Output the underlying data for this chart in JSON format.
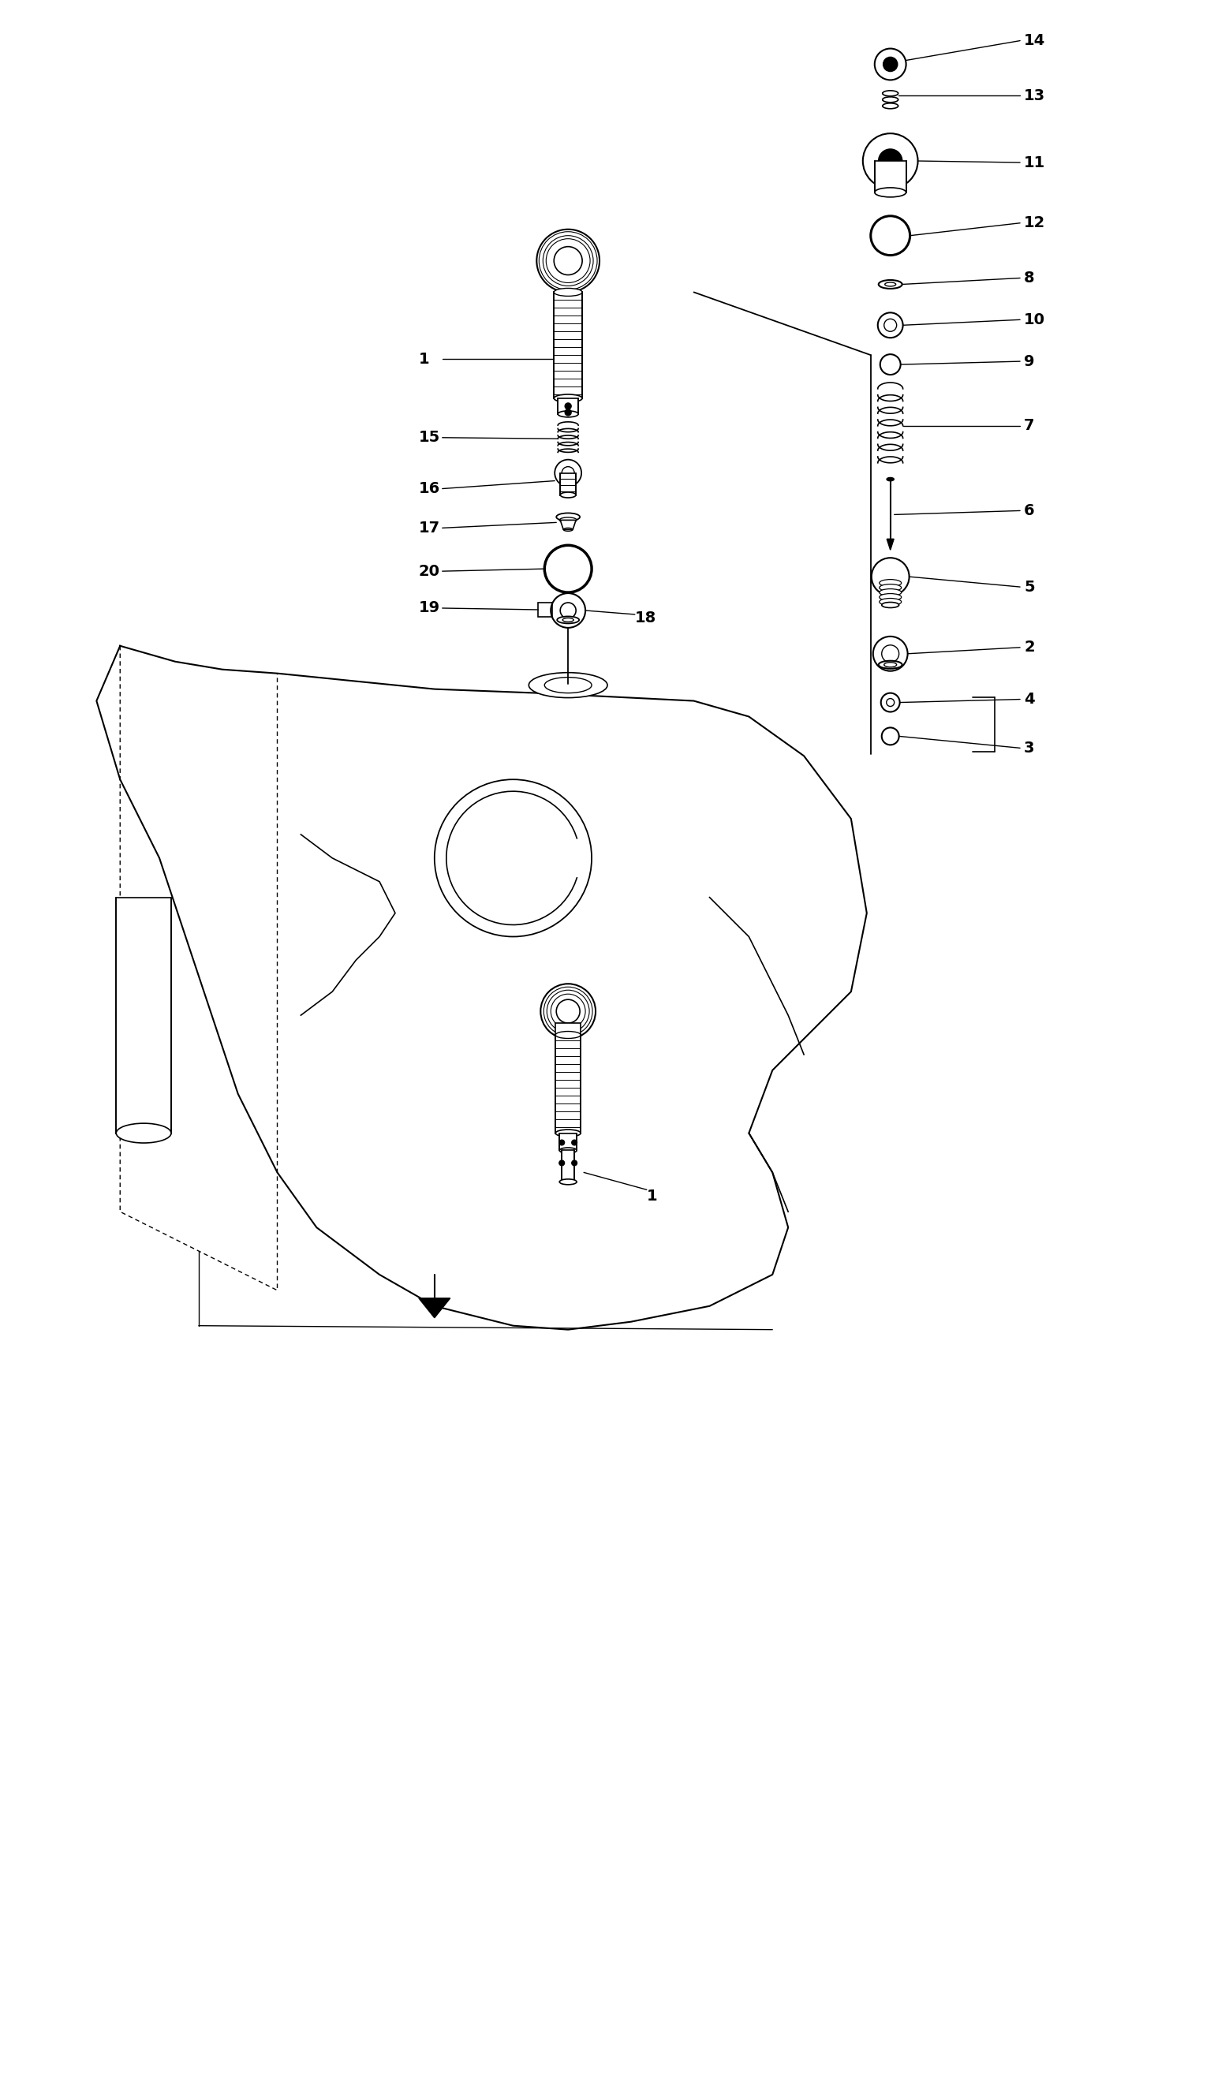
{
  "bg_color": "#ffffff",
  "line_color": "#000000",
  "fig_width": 15.39,
  "fig_height": 26.37
}
